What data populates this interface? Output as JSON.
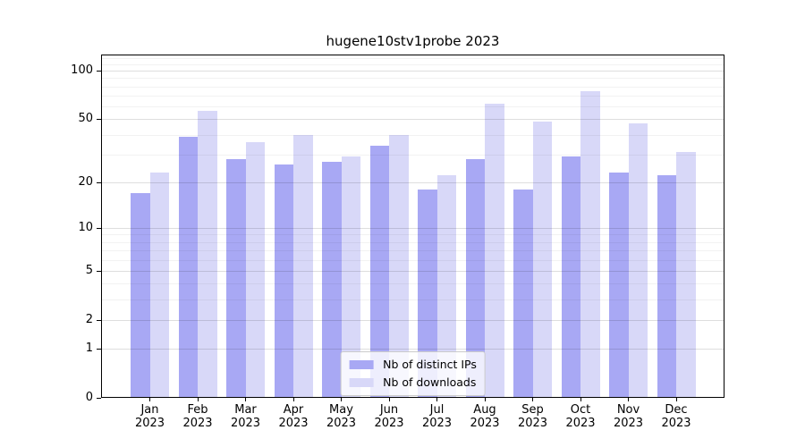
{
  "chart_data": {
    "type": "bar",
    "title": "hugene10stv1probe 2023",
    "categories": [
      "Jan",
      "Feb",
      "Mar",
      "Apr",
      "May",
      "Jun",
      "Jul",
      "Aug",
      "Sep",
      "Oct",
      "Nov",
      "Dec"
    ],
    "x_year": "2023",
    "series": [
      {
        "name": "Nb of distinct IPs",
        "color": "#a8a8f4",
        "values": [
          17,
          39,
          28,
          26,
          27,
          34,
          18,
          28,
          18,
          29,
          23,
          22
        ]
      },
      {
        "name": "Nb of downloads",
        "color": "#d8d8f8",
        "values": [
          23,
          56,
          36,
          40,
          29,
          40,
          22,
          62,
          48,
          75,
          47,
          31
        ]
      }
    ],
    "xlabel": "",
    "ylabel": "",
    "yscale": "log1p",
    "ylim": [
      0,
      127
    ],
    "yticks": [
      0,
      1,
      2,
      5,
      10,
      20,
      50,
      100
    ],
    "yticks_minor": [
      3,
      4,
      6,
      7,
      8,
      9,
      30,
      40,
      60,
      70,
      80,
      90,
      110,
      120
    ],
    "grid": "horizontal",
    "legend_position": "lower center"
  }
}
